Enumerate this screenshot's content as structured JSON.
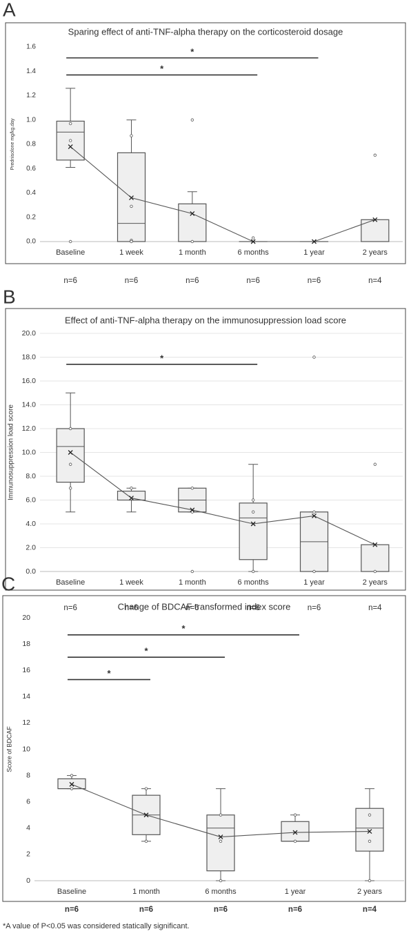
{
  "chart_data": [
    {
      "type": "box",
      "panel": "A",
      "title": "Sparing effect of anti-TNF-alpha therapy on the corticosteroid dosage",
      "ylabel": "Prednisolone mg/kg.day",
      "categories": [
        "Baseline",
        "1 week",
        "1 month",
        "6 months",
        "1 year",
        "2 years"
      ],
      "n_labels": [
        "n=6",
        "n=6",
        "n=6",
        "n=6",
        "n=6",
        "n=4"
      ],
      "box_color": "#efefef",
      "line_color": "#555555",
      "grid": false,
      "ylim": [
        0,
        1.6
      ],
      "yticks": [
        {
          "value": 0,
          "label": "0.0"
        },
        0.2,
        0.4,
        0.6,
        0.8,
        {
          "value": 1,
          "label": "1.0"
        },
        1.2,
        1.4,
        1.6
      ],
      "boxes": [
        {
          "min": 0.61,
          "q1": 0.67,
          "median": 0.9,
          "q3": 0.99,
          "max": 1.26,
          "mean": 0.78,
          "points": [
            0.97,
            0.83,
            0
          ]
        },
        {
          "min": 0,
          "q1": 0,
          "median": 0.15,
          "q3": 0.73,
          "max": 1.0,
          "mean": 0.36,
          "points": [
            0.87,
            0.29,
            0.01,
            0
          ]
        },
        {
          "min": 0,
          "q1": 0,
          "median": 0,
          "q3": 0.31,
          "max": 0.41,
          "mean": 0.23,
          "points": [
            1.0,
            0
          ]
        },
        {
          "min": 0,
          "q1": 0,
          "median": 0,
          "q3": 0,
          "max": 0,
          "mean": 0,
          "points": [
            0.03
          ]
        },
        {
          "min": 0,
          "q1": 0,
          "median": 0,
          "q3": 0,
          "max": 0,
          "mean": 0,
          "points": []
        },
        {
          "min": 0,
          "q1": 0,
          "median": 0,
          "q3": 0.18,
          "max": 0.18,
          "mean": 0.18,
          "points": [
            0.71
          ]
        }
      ],
      "brackets": [
        {
          "from": "Baseline",
          "to": "1 year",
          "y": 1.51,
          "label": "*"
        },
        {
          "from": "Baseline",
          "to": "6 months",
          "y": 1.37,
          "label": "*"
        }
      ]
    },
    {
      "type": "box",
      "panel": "B",
      "title": "Effect of anti-TNF-alpha therapy on the immunosuppression load score",
      "ylabel": "Immunosuppression load score",
      "categories": [
        "Baseline",
        "1 week",
        "1 month",
        "6 months",
        "1 year",
        "2 years"
      ],
      "n_labels": [
        "n=6",
        "n=6",
        "n=6",
        "n=6",
        "n=6",
        "n=4"
      ],
      "box_color": "#efefef",
      "line_color": "#555555",
      "grid": true,
      "ylim": [
        0,
        20
      ],
      "yticks": [
        {
          "value": 0,
          "label": "0.0"
        },
        {
          "value": 2,
          "label": "2.0"
        },
        {
          "value": 4,
          "label": "4.0"
        },
        {
          "value": 6,
          "label": "6.0"
        },
        {
          "value": 8,
          "label": "8.0"
        },
        {
          "value": 10,
          "label": "10.0"
        },
        {
          "value": 12,
          "label": "12.0"
        },
        {
          "value": 14,
          "label": "14.0"
        },
        {
          "value": 16,
          "label": "16.0"
        },
        {
          "value": 18,
          "label": "18.0"
        },
        {
          "value": 20,
          "label": "20.0"
        }
      ],
      "boxes": [
        {
          "min": 5,
          "q1": 7.5,
          "median": 10.5,
          "q3": 12,
          "max": 15,
          "mean": 10,
          "points": [
            12,
            9,
            7
          ]
        },
        {
          "min": 5,
          "q1": 6,
          "median": 6,
          "q3": 6.75,
          "max": 7,
          "mean": 6.17,
          "points": [
            7
          ]
        },
        {
          "min": 5,
          "q1": 5,
          "median": 6,
          "q3": 7,
          "max": 7,
          "mean": 5.17,
          "points": [
            7,
            5,
            0
          ]
        },
        {
          "min": 0,
          "q1": 1,
          "median": 4.5,
          "q3": 5.75,
          "max": 9,
          "mean": 4,
          "points": [
            6,
            5,
            0
          ]
        },
        {
          "min": 0,
          "q1": 0,
          "median": 2.5,
          "q3": 5,
          "max": 5,
          "mean": 4.67,
          "points": [
            18,
            5,
            0
          ]
        },
        {
          "min": 0,
          "q1": 0,
          "median": 0,
          "q3": 2.25,
          "max": 2.25,
          "mean": 2.25,
          "points": [
            9,
            0
          ]
        }
      ],
      "brackets": [
        {
          "from": "Baseline",
          "to": "6 months",
          "y": 17.4,
          "label": "*"
        }
      ]
    },
    {
      "type": "box",
      "panel": "C",
      "title": "Change of BDCAF transformed index score",
      "ylabel": "Score of BDCAF",
      "categories": [
        "Baseline",
        "1 month",
        "6 months",
        "1 year",
        "2 years"
      ],
      "n_labels": [
        "n=6",
        "n=6",
        "n=6",
        "n=6",
        "n=4"
      ],
      "box_color": "#efefef",
      "line_color": "#555555",
      "grid": false,
      "ylim": [
        0,
        20
      ],
      "yticks": [
        0,
        2,
        4,
        6,
        8,
        10,
        12,
        14,
        16,
        18,
        20
      ],
      "boxes": [
        {
          "min": 7,
          "q1": 7,
          "median": 7,
          "q3": 7.75,
          "max": 8,
          "mean": 7.33,
          "points": [
            8,
            7
          ]
        },
        {
          "min": 3,
          "q1": 3.5,
          "median": 5,
          "q3": 6.5,
          "max": 7,
          "mean": 5,
          "points": [
            7,
            3
          ]
        },
        {
          "min": 0,
          "q1": 0.75,
          "median": 4,
          "q3": 5,
          "max": 7,
          "mean": 3.33,
          "points": [
            5,
            3,
            0
          ]
        },
        {
          "min": 3,
          "q1": 3,
          "median": 3,
          "q3": 4.5,
          "max": 5,
          "mean": 3.67,
          "points": [
            5,
            3
          ]
        },
        {
          "min": 0,
          "q1": 2.25,
          "median": 4,
          "q3": 5.5,
          "max": 7,
          "mean": 3.75,
          "points": [
            5,
            3,
            0
          ]
        }
      ],
      "brackets": [
        {
          "from": "Baseline",
          "to": "1 year",
          "y": 18.7,
          "label": "*"
        },
        {
          "from": "Baseline",
          "to": "6 months",
          "y": 17,
          "label": "*"
        },
        {
          "from": "Baseline",
          "to": "1 month",
          "y": 15.3,
          "label": "*"
        }
      ]
    }
  ],
  "footnote": "*A value of P<0.05 was considered statically significant."
}
